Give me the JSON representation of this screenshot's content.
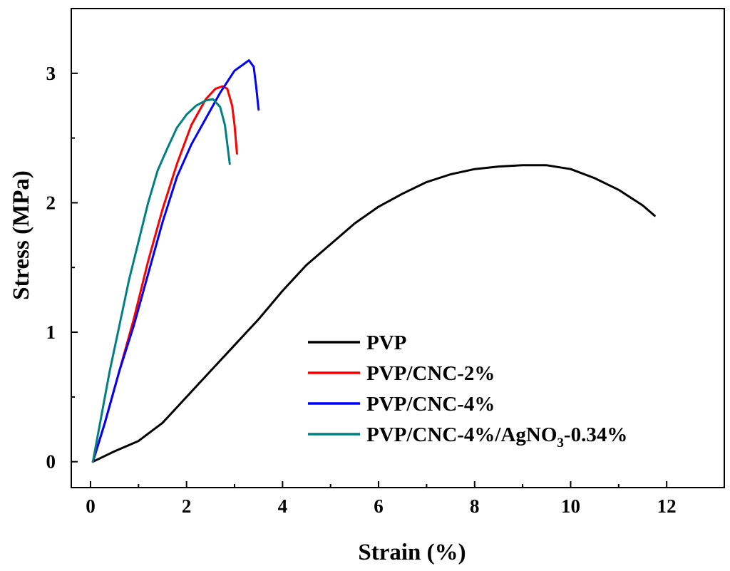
{
  "chart_data": {
    "type": "line",
    "title": "",
    "xlabel": "Strain (%)",
    "ylabel": "Stress (MPa)",
    "xlim": [
      -0.4,
      13.2
    ],
    "ylim": [
      -0.2,
      3.5
    ],
    "xticks": [
      0,
      2,
      4,
      6,
      8,
      10,
      12
    ],
    "yticks": [
      0,
      1,
      2,
      3
    ],
    "xtick_labels": [
      "0",
      "2",
      "4",
      "6",
      "8",
      "10",
      "12"
    ],
    "ytick_labels": [
      "0",
      "1",
      "2",
      "3"
    ],
    "legend_position": "lower-center",
    "series": [
      {
        "name": "PVP",
        "color": "#000000",
        "legend": {
          "main": "PVP"
        },
        "points": [
          [
            0.05,
            0
          ],
          [
            0.5,
            0.08
          ],
          [
            1.0,
            0.16
          ],
          [
            1.5,
            0.3
          ],
          [
            2.0,
            0.5
          ],
          [
            2.5,
            0.7
          ],
          [
            3.0,
            0.9
          ],
          [
            3.5,
            1.1
          ],
          [
            4.0,
            1.32
          ],
          [
            4.5,
            1.52
          ],
          [
            5.0,
            1.68
          ],
          [
            5.5,
            1.84
          ],
          [
            6.0,
            1.97
          ],
          [
            6.5,
            2.07
          ],
          [
            7.0,
            2.16
          ],
          [
            7.5,
            2.22
          ],
          [
            8.0,
            2.26
          ],
          [
            8.5,
            2.28
          ],
          [
            9.0,
            2.29
          ],
          [
            9.5,
            2.29
          ],
          [
            10.0,
            2.26
          ],
          [
            10.5,
            2.19
          ],
          [
            11.0,
            2.1
          ],
          [
            11.5,
            1.98
          ],
          [
            11.75,
            1.9
          ]
        ]
      },
      {
        "name": "PVP/CNC-2%",
        "color": "#ff0000",
        "legend": {
          "main": "PVP/CNC-2%"
        },
        "points": [
          [
            0.05,
            0
          ],
          [
            0.3,
            0.3
          ],
          [
            0.6,
            0.7
          ],
          [
            0.9,
            1.1
          ],
          [
            1.2,
            1.55
          ],
          [
            1.5,
            1.95
          ],
          [
            1.8,
            2.3
          ],
          [
            2.1,
            2.6
          ],
          [
            2.4,
            2.8
          ],
          [
            2.6,
            2.88
          ],
          [
            2.75,
            2.9
          ],
          [
            2.85,
            2.88
          ],
          [
            2.95,
            2.75
          ],
          [
            3.0,
            2.6
          ],
          [
            3.05,
            2.38
          ]
        ]
      },
      {
        "name": "PVP/CNC-4%",
        "color": "#0000ff",
        "legend": {
          "main": "PVP/CNC-4%"
        },
        "points": [
          [
            0.05,
            0
          ],
          [
            0.3,
            0.3
          ],
          [
            0.6,
            0.7
          ],
          [
            0.9,
            1.05
          ],
          [
            1.2,
            1.45
          ],
          [
            1.5,
            1.85
          ],
          [
            1.8,
            2.2
          ],
          [
            2.1,
            2.45
          ],
          [
            2.4,
            2.65
          ],
          [
            2.7,
            2.85
          ],
          [
            3.0,
            3.02
          ],
          [
            3.3,
            3.1
          ],
          [
            3.4,
            3.05
          ],
          [
            3.45,
            2.9
          ],
          [
            3.5,
            2.72
          ]
        ]
      },
      {
        "name": "PVP/CNC-4%/AgNO3-0.34%",
        "color": "#008080",
        "legend": {
          "main": "PVP/CNC-4%/AgNO",
          "sub": "3",
          "tail": "-0.34%"
        },
        "points": [
          [
            0.05,
            0
          ],
          [
            0.2,
            0.3
          ],
          [
            0.4,
            0.7
          ],
          [
            0.6,
            1.05
          ],
          [
            0.8,
            1.4
          ],
          [
            1.0,
            1.7
          ],
          [
            1.2,
            2.0
          ],
          [
            1.4,
            2.25
          ],
          [
            1.6,
            2.42
          ],
          [
            1.8,
            2.58
          ],
          [
            2.0,
            2.68
          ],
          [
            2.2,
            2.75
          ],
          [
            2.4,
            2.79
          ],
          [
            2.55,
            2.8
          ],
          [
            2.7,
            2.74
          ],
          [
            2.8,
            2.6
          ],
          [
            2.85,
            2.45
          ],
          [
            2.9,
            2.3
          ]
        ]
      }
    ]
  }
}
